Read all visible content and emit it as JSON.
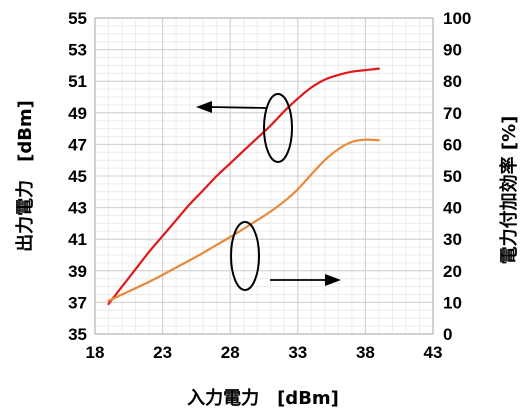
{
  "chart_data": {
    "type": "line",
    "title": "",
    "xlabel": "入力電力　[dBm]",
    "ylabel_left": "出力電力　[dBm]",
    "ylabel_right": "電力付加効率 [%]",
    "xlim": [
      18,
      43
    ],
    "ylim_left": [
      35,
      55
    ],
    "ylim_right": [
      0,
      100
    ],
    "x_ticks": [
      "18",
      "23",
      "28",
      "33",
      "38",
      "43"
    ],
    "y_left_ticks": [
      "35",
      "37",
      "39",
      "41",
      "43",
      "45",
      "47",
      "49",
      "51",
      "53",
      "55"
    ],
    "y_right_ticks": [
      "0",
      "10",
      "20",
      "30",
      "40",
      "50",
      "60",
      "70",
      "80",
      "90",
      "100"
    ],
    "grid": true,
    "series": [
      {
        "axis": "left",
        "color": "#e0191b",
        "x": [
          19,
          20,
          21,
          22,
          23,
          24,
          25,
          26,
          27,
          28,
          29,
          30,
          31,
          32,
          33,
          34,
          35,
          36,
          37,
          38,
          39
        ],
        "values": [
          36.9,
          38.0,
          39.1,
          40.2,
          41.2,
          42.2,
          43.2,
          44.1,
          45.0,
          45.8,
          46.6,
          47.4,
          48.2,
          49.1,
          49.9,
          50.6,
          51.1,
          51.4,
          51.6,
          51.7,
          51.8
        ]
      },
      {
        "axis": "right",
        "color": "#e8893a",
        "x": [
          19,
          20,
          21,
          22,
          23,
          24,
          25,
          26,
          27,
          28,
          29,
          30,
          31,
          32,
          33,
          34,
          35,
          36,
          37,
          38,
          39
        ],
        "values": [
          10.5,
          12.5,
          14.5,
          16.5,
          18.7,
          21.0,
          23.3,
          25.7,
          28.2,
          30.7,
          33.3,
          36.0,
          38.8,
          42.0,
          45.8,
          50.5,
          55.0,
          58.5,
          60.8,
          61.5,
          61.3
        ]
      }
    ]
  }
}
